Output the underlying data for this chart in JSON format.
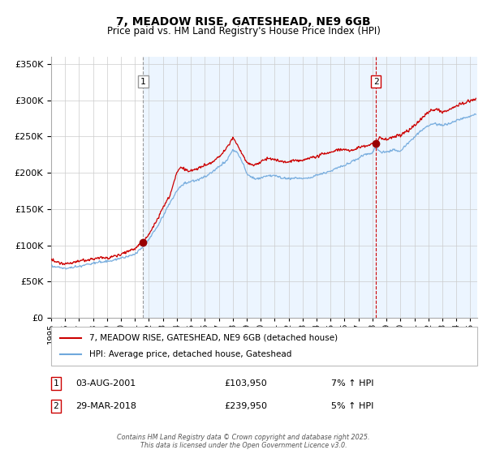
{
  "title": "7, MEADOW RISE, GATESHEAD, NE9 6GB",
  "subtitle": "Price paid vs. HM Land Registry's House Price Index (HPI)",
  "legend_line1": "7, MEADOW RISE, GATESHEAD, NE9 6GB (detached house)",
  "legend_line2": "HPI: Average price, detached house, Gateshead",
  "transaction1_date": "03-AUG-2001",
  "transaction1_price": "£103,950",
  "transaction1_hpi": "7% ↑ HPI",
  "transaction2_date": "29-MAR-2018",
  "transaction2_price": "£239,950",
  "transaction2_hpi": "5% ↑ HPI",
  "copyright": "Contains HM Land Registry data © Crown copyright and database right 2025.\nThis data is licensed under the Open Government Licence v3.0.",
  "hpi_color": "#6fa8dc",
  "price_color": "#cc0000",
  "dot_color": "#990000",
  "background_plot": "#ddeeff",
  "vline1_color": "#999999",
  "vline2_color": "#cc0000",
  "shade_start_year": 2001.6,
  "ylim": [
    0,
    360000
  ],
  "xlim_start": 1995.0,
  "xlim_end": 2025.5,
  "transaction1_x": 2001.59,
  "transaction1_y": 103950,
  "transaction2_x": 2018.25,
  "transaction2_y": 239950,
  "anchors_hpi": [
    [
      1995.0,
      72000
    ],
    [
      1995.5,
      70000
    ],
    [
      1996.0,
      68000
    ],
    [
      1996.5,
      69000
    ],
    [
      1997.0,
      71000
    ],
    [
      1997.5,
      73000
    ],
    [
      1998.0,
      75000
    ],
    [
      1998.5,
      77000
    ],
    [
      1999.0,
      78000
    ],
    [
      1999.5,
      80000
    ],
    [
      2000.0,
      82000
    ],
    [
      2000.5,
      85000
    ],
    [
      2001.0,
      88000
    ],
    [
      2001.6,
      98000
    ],
    [
      2002.0,
      108000
    ],
    [
      2002.5,
      122000
    ],
    [
      2003.0,
      140000
    ],
    [
      2003.5,
      158000
    ],
    [
      2004.0,
      175000
    ],
    [
      2004.5,
      185000
    ],
    [
      2005.0,
      188000
    ],
    [
      2005.5,
      190000
    ],
    [
      2006.0,
      195000
    ],
    [
      2006.5,
      200000
    ],
    [
      2007.0,
      208000
    ],
    [
      2007.5,
      215000
    ],
    [
      2008.0,
      232000
    ],
    [
      2008.3,
      228000
    ],
    [
      2008.8,
      210000
    ],
    [
      2009.0,
      198000
    ],
    [
      2009.5,
      192000
    ],
    [
      2010.0,
      193000
    ],
    [
      2010.5,
      196000
    ],
    [
      2011.0,
      196000
    ],
    [
      2011.5,
      193000
    ],
    [
      2012.0,
      192000
    ],
    [
      2012.5,
      193000
    ],
    [
      2013.0,
      192000
    ],
    [
      2013.5,
      193000
    ],
    [
      2014.0,
      196000
    ],
    [
      2014.5,
      200000
    ],
    [
      2015.0,
      202000
    ],
    [
      2015.5,
      207000
    ],
    [
      2016.0,
      210000
    ],
    [
      2016.5,
      215000
    ],
    [
      2017.0,
      220000
    ],
    [
      2017.5,
      225000
    ],
    [
      2018.0,
      228000
    ],
    [
      2018.25,
      236000
    ],
    [
      2018.5,
      230000
    ],
    [
      2019.0,
      228000
    ],
    [
      2019.5,
      232000
    ],
    [
      2020.0,
      230000
    ],
    [
      2020.5,
      240000
    ],
    [
      2021.0,
      250000
    ],
    [
      2021.5,
      258000
    ],
    [
      2022.0,
      265000
    ],
    [
      2022.5,
      268000
    ],
    [
      2023.0,
      265000
    ],
    [
      2023.5,
      268000
    ],
    [
      2024.0,
      272000
    ],
    [
      2024.5,
      275000
    ],
    [
      2025.0,
      278000
    ],
    [
      2025.4,
      280000
    ]
  ],
  "anchors_price": [
    [
      1995.0,
      80000
    ],
    [
      1995.5,
      77000
    ],
    [
      1996.0,
      75000
    ],
    [
      1996.5,
      76000
    ],
    [
      1997.0,
      78000
    ],
    [
      1997.5,
      80000
    ],
    [
      1998.0,
      81000
    ],
    [
      1998.5,
      83000
    ],
    [
      1999.0,
      83000
    ],
    [
      1999.5,
      85000
    ],
    [
      2000.0,
      88000
    ],
    [
      2000.5,
      92000
    ],
    [
      2001.0,
      96000
    ],
    [
      2001.59,
      104000
    ],
    [
      2002.0,
      115000
    ],
    [
      2002.5,
      132000
    ],
    [
      2003.0,
      152000
    ],
    [
      2003.5,
      168000
    ],
    [
      2004.0,
      202000
    ],
    [
      2004.3,
      208000
    ],
    [
      2004.5,
      205000
    ],
    [
      2005.0,
      202000
    ],
    [
      2005.5,
      206000
    ],
    [
      2006.0,
      210000
    ],
    [
      2006.5,
      214000
    ],
    [
      2007.0,
      222000
    ],
    [
      2007.5,
      232000
    ],
    [
      2008.0,
      248000
    ],
    [
      2008.3,
      240000
    ],
    [
      2008.8,
      222000
    ],
    [
      2009.0,
      215000
    ],
    [
      2009.5,
      210000
    ],
    [
      2010.0,
      215000
    ],
    [
      2010.5,
      220000
    ],
    [
      2011.0,
      218000
    ],
    [
      2011.5,
      216000
    ],
    [
      2012.0,
      215000
    ],
    [
      2012.5,
      218000
    ],
    [
      2013.0,
      218000
    ],
    [
      2013.5,
      220000
    ],
    [
      2014.0,
      222000
    ],
    [
      2014.5,
      226000
    ],
    [
      2015.0,
      228000
    ],
    [
      2015.5,
      232000
    ],
    [
      2016.0,
      232000
    ],
    [
      2016.5,
      230000
    ],
    [
      2017.0,
      235000
    ],
    [
      2017.5,
      238000
    ],
    [
      2018.0,
      240000
    ],
    [
      2018.25,
      242000
    ],
    [
      2018.5,
      248000
    ],
    [
      2019.0,
      246000
    ],
    [
      2019.5,
      250000
    ],
    [
      2020.0,
      252000
    ],
    [
      2020.5,
      258000
    ],
    [
      2021.0,
      265000
    ],
    [
      2021.5,
      275000
    ],
    [
      2022.0,
      283000
    ],
    [
      2022.5,
      288000
    ],
    [
      2023.0,
      284000
    ],
    [
      2023.5,
      287000
    ],
    [
      2024.0,
      292000
    ],
    [
      2024.5,
      296000
    ],
    [
      2025.0,
      299000
    ],
    [
      2025.4,
      301000
    ]
  ]
}
